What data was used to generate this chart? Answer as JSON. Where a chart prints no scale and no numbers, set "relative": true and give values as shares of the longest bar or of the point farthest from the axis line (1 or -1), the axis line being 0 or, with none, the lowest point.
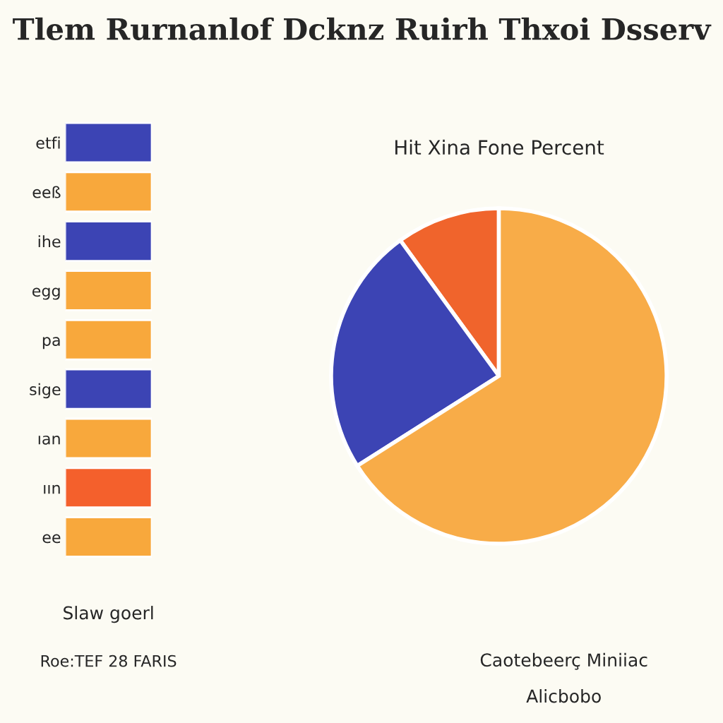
{
  "chart_data": [
    {
      "type": "bar",
      "orientation": "horizontal",
      "relative": true,
      "title": "Tlem Rurnanlof Dcknz Ruirh Thxoi Dsserv",
      "categories": [
        "etfi",
        "eeß",
        "ihe",
        "egg",
        "pa",
        "sige",
        "ıan",
        "ıın",
        "ee"
      ],
      "values": [
        1,
        1,
        1,
        1,
        1,
        1,
        1,
        1,
        1
      ],
      "colors": [
        "#3c44b4",
        "#f8a83c",
        "#3c44b4",
        "#f8a83c",
        "#f8a83c",
        "#3c44b4",
        "#f8a83c",
        "#f4602c",
        "#f8a83c"
      ],
      "xlabel": "Slaw goerl",
      "annotations": [
        "Roe:TEF 28 FARIS"
      ]
    },
    {
      "type": "pie",
      "subtitle": "Hit Xina Fone Percent",
      "categories": [
        null,
        null,
        null
      ],
      "values": [
        10,
        24,
        66
      ],
      "colors": [
        "#f0642c",
        "#3c44b4",
        "#f8ac48"
      ],
      "annotations": [
        "Caotebeerç Miniiac",
        "Alicbobo"
      ]
    }
  ]
}
